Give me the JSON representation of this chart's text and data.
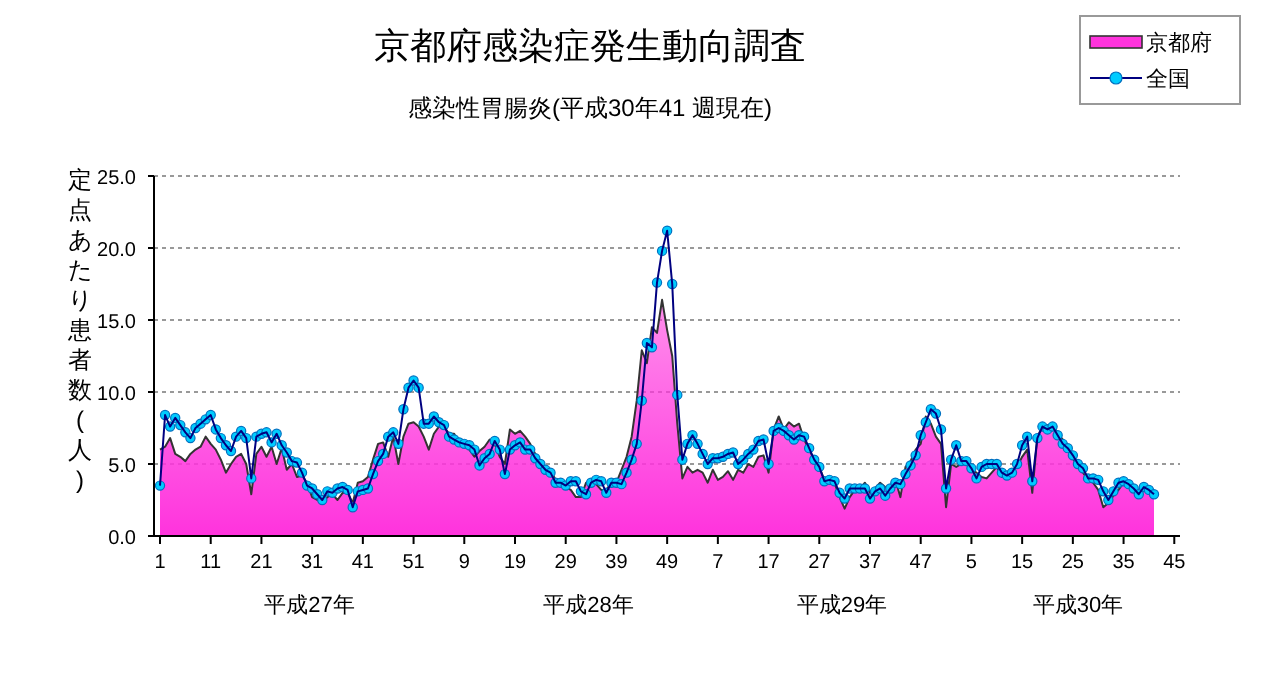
{
  "chart_data": {
    "type": "line",
    "title": "京都府感染症発生動向調査",
    "subtitle": "感染性胃腸炎(平成30年41 週現在)",
    "ylabel": "定点あたり患者数(人)",
    "annotations": [
      "平成27年",
      "平成28年",
      "平成29年",
      "平成30年"
    ],
    "categories": [
      "1",
      null,
      null,
      null,
      null,
      null,
      null,
      null,
      null,
      null,
      "11",
      null,
      null,
      null,
      null,
      null,
      null,
      null,
      null,
      null,
      "21",
      null,
      null,
      null,
      null,
      null,
      null,
      null,
      null,
      null,
      "31",
      null,
      null,
      null,
      null,
      null,
      null,
      null,
      null,
      null,
      "41",
      null,
      null,
      null,
      null,
      null,
      null,
      null,
      null,
      null,
      "51",
      null,
      null,
      null,
      null,
      null,
      null,
      null,
      null,
      null,
      "9",
      null,
      null,
      null,
      null,
      null,
      null,
      null,
      null,
      null,
      "19",
      null,
      null,
      null,
      null,
      null,
      null,
      null,
      null,
      null,
      "29",
      null,
      null,
      null,
      null,
      null,
      null,
      null,
      null,
      null,
      "39",
      null,
      null,
      null,
      null,
      null,
      null,
      null,
      null,
      null,
      "49",
      null,
      null,
      null,
      null,
      null,
      null,
      null,
      null,
      null,
      "7",
      null,
      null,
      null,
      null,
      null,
      null,
      null,
      null,
      null,
      "17",
      null,
      null,
      null,
      null,
      null,
      null,
      null,
      null,
      null,
      "27",
      null,
      null,
      null,
      null,
      null,
      null,
      null,
      null,
      null,
      "37",
      null,
      null,
      null,
      null,
      null,
      null,
      null,
      null,
      null,
      "47",
      null,
      null,
      null,
      null,
      null,
      null,
      null,
      null,
      null,
      "5",
      null,
      null,
      null,
      null,
      null,
      null,
      null,
      null,
      null,
      "15",
      null,
      null,
      null,
      null,
      null,
      null,
      null,
      null,
      null,
      "25",
      null,
      null,
      null,
      null,
      null,
      null,
      null,
      null,
      null,
      "35",
      null,
      null,
      null,
      null,
      null,
      null,
      null,
      null,
      null,
      "45",
      null,
      null
    ],
    "series": [
      {
        "name": "京都府",
        "type": "area",
        "marker": "none",
        "color": "#ff33dd",
        "values": [
          6.0,
          6.2,
          6.8,
          5.7,
          5.5,
          5.2,
          5.7,
          6.0,
          6.2,
          6.9,
          6.4,
          6.0,
          5.3,
          4.4,
          5.0,
          5.5,
          5.7,
          5.0,
          2.9,
          5.7,
          6.2,
          5.5,
          6.2,
          5.0,
          6.1,
          4.6,
          5.0,
          4.1,
          4.2,
          3.7,
          2.7,
          2.5,
          2.4,
          2.7,
          2.9,
          2.5,
          3.0,
          3.0,
          2.3,
          3.7,
          3.8,
          4.1,
          5.3,
          6.4,
          6.5,
          5.5,
          6.9,
          5.0,
          6.9,
          7.8,
          7.9,
          7.6,
          6.9,
          6.0,
          7.1,
          7.6,
          7.6,
          7.1,
          7.1,
          6.4,
          6.4,
          6.0,
          5.5,
          5.9,
          6.2,
          6.7,
          6.4,
          5.5,
          5.0,
          7.4,
          7.1,
          7.3,
          6.9,
          6.4,
          5.7,
          5.0,
          4.8,
          4.6,
          3.9,
          3.7,
          3.4,
          3.2,
          2.7,
          2.7,
          3.7,
          3.7,
          3.6,
          3.2,
          3.2,
          3.7,
          3.7,
          4.6,
          5.5,
          6.9,
          9.4,
          12.9,
          12.0,
          14.5,
          14.1,
          16.4,
          14.3,
          12.5,
          7.8,
          4.0,
          4.8,
          4.4,
          4.6,
          4.4,
          3.7,
          4.6,
          3.9,
          4.1,
          4.5,
          3.9,
          4.6,
          4.4,
          5.0,
          4.8,
          5.5,
          5.6,
          4.4,
          7.4,
          8.3,
          7.4,
          7.9,
          7.6,
          7.8,
          6.7,
          6.0,
          5.3,
          4.8,
          3.9,
          3.7,
          3.7,
          2.7,
          1.9,
          2.7,
          3.2,
          3.3,
          3.7,
          3.0,
          3.3,
          3.7,
          3.4,
          3.2,
          3.9,
          2.7,
          4.8,
          5.2,
          6.0,
          6.4,
          8.3,
          7.8,
          6.9,
          6.4,
          2.0,
          5.0,
          4.8,
          5.0,
          5.0,
          4.6,
          4.4,
          4.1,
          4.0,
          4.4,
          4.8,
          4.1,
          4.1,
          4.5,
          4.8,
          5.5,
          6.0,
          3.0,
          6.9,
          7.6,
          7.7,
          7.8,
          7.1,
          6.7,
          6.0,
          5.4,
          4.8,
          4.4,
          3.9,
          3.7,
          3.2,
          2.0,
          2.3,
          2.8,
          3.2,
          3.7,
          3.7,
          3.3,
          3.0,
          3.2,
          3.3,
          3.2,
          null,
          null,
          null,
          null,
          null,
          null
        ]
      },
      {
        "name": "全国",
        "color": "#00ccff",
        "values": [
          3.5,
          8.4,
          7.6,
          8.2,
          7.7,
          7.2,
          6.8,
          7.5,
          7.8,
          8.1,
          8.4,
          7.4,
          6.8,
          6.3,
          5.9,
          6.9,
          7.3,
          6.8,
          4.0,
          6.9,
          7.1,
          7.2,
          6.5,
          7.1,
          6.3,
          5.8,
          5.2,
          5.1,
          4.4,
          3.5,
          3.3,
          2.9,
          2.5,
          3.1,
          3.0,
          3.3,
          3.4,
          3.2,
          2.0,
          3.1,
          3.2,
          3.3,
          4.3,
          5.2,
          5.7,
          6.9,
          7.2,
          6.4,
          8.8,
          10.3,
          10.8,
          10.3,
          7.8,
          7.8,
          8.3,
          7.9,
          7.7,
          6.9,
          6.7,
          6.5,
          6.4,
          6.3,
          6.0,
          4.9,
          5.4,
          5.7,
          6.6,
          6.0,
          4.3,
          6.0,
          6.3,
          6.5,
          6.0,
          6.0,
          5.4,
          5.0,
          4.6,
          4.4,
          3.7,
          3.7,
          3.5,
          3.8,
          3.8,
          3.1,
          2.9,
          3.7,
          3.9,
          3.8,
          3.0,
          3.7,
          3.7,
          3.6,
          4.4,
          5.3,
          6.4,
          9.4,
          13.4,
          13.1,
          17.6,
          19.8,
          21.2,
          17.5,
          9.8,
          5.3,
          6.4,
          7.0,
          6.4,
          5.7,
          5.0,
          5.4,
          5.4,
          5.5,
          5.7,
          5.8,
          5.0,
          5.3,
          5.7,
          6.0,
          6.6,
          6.7,
          5.0,
          7.3,
          7.5,
          7.3,
          7.0,
          6.7,
          7.0,
          6.9,
          6.1,
          5.3,
          4.8,
          3.8,
          3.9,
          3.8,
          3.0,
          2.6,
          3.3,
          3.3,
          3.3,
          3.3,
          2.6,
          3.1,
          3.3,
          2.8,
          3.3,
          3.7,
          3.6,
          4.3,
          4.9,
          5.6,
          7.0,
          7.9,
          8.8,
          8.5,
          7.4,
          3.3,
          5.3,
          6.3,
          5.2,
          5.2,
          4.7,
          4.0,
          4.8,
          5.0,
          5.0,
          5.0,
          4.4,
          4.2,
          4.4,
          5.0,
          6.3,
          6.9,
          3.8,
          6.8,
          7.6,
          7.4,
          7.6,
          7.0,
          6.4,
          6.1,
          5.6,
          5.0,
          4.7,
          4.0,
          4.0,
          3.9,
          3.1,
          2.5,
          3.1,
          3.7,
          3.8,
          3.6,
          3.3,
          2.9,
          3.4,
          3.2,
          2.9,
          null,
          null,
          null,
          null,
          null,
          null
        ]
      }
    ],
    "ylim": [
      0,
      25
    ],
    "yticks": [
      {
        "value": 0,
        "label": "0.0"
      },
      {
        "value": 5,
        "label": "5.0"
      },
      {
        "value": 10,
        "label": "10.0"
      },
      {
        "value": 15,
        "label": "15.0"
      },
      {
        "value": 20,
        "label": "20.0"
      },
      {
        "value": 25,
        "label": "25.0"
      }
    ],
    "grid": "y",
    "legend": "top right",
    "marker": "circle",
    "line_style": "solid"
  }
}
